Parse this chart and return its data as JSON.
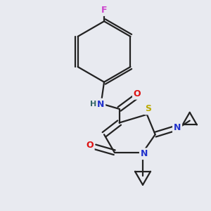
{
  "bg_color": "#e8eaf0",
  "bond_color": "#222222",
  "bond_width": 1.6,
  "atom_colors": {
    "F": "#cc44cc",
    "O": "#dd1111",
    "N": "#2233cc",
    "S": "#bbaa00",
    "H": "#336666",
    "C": "#222222"
  },
  "font_size": 8.5,
  "fig_size": [
    3.0,
    3.0
  ],
  "dpi": 100
}
